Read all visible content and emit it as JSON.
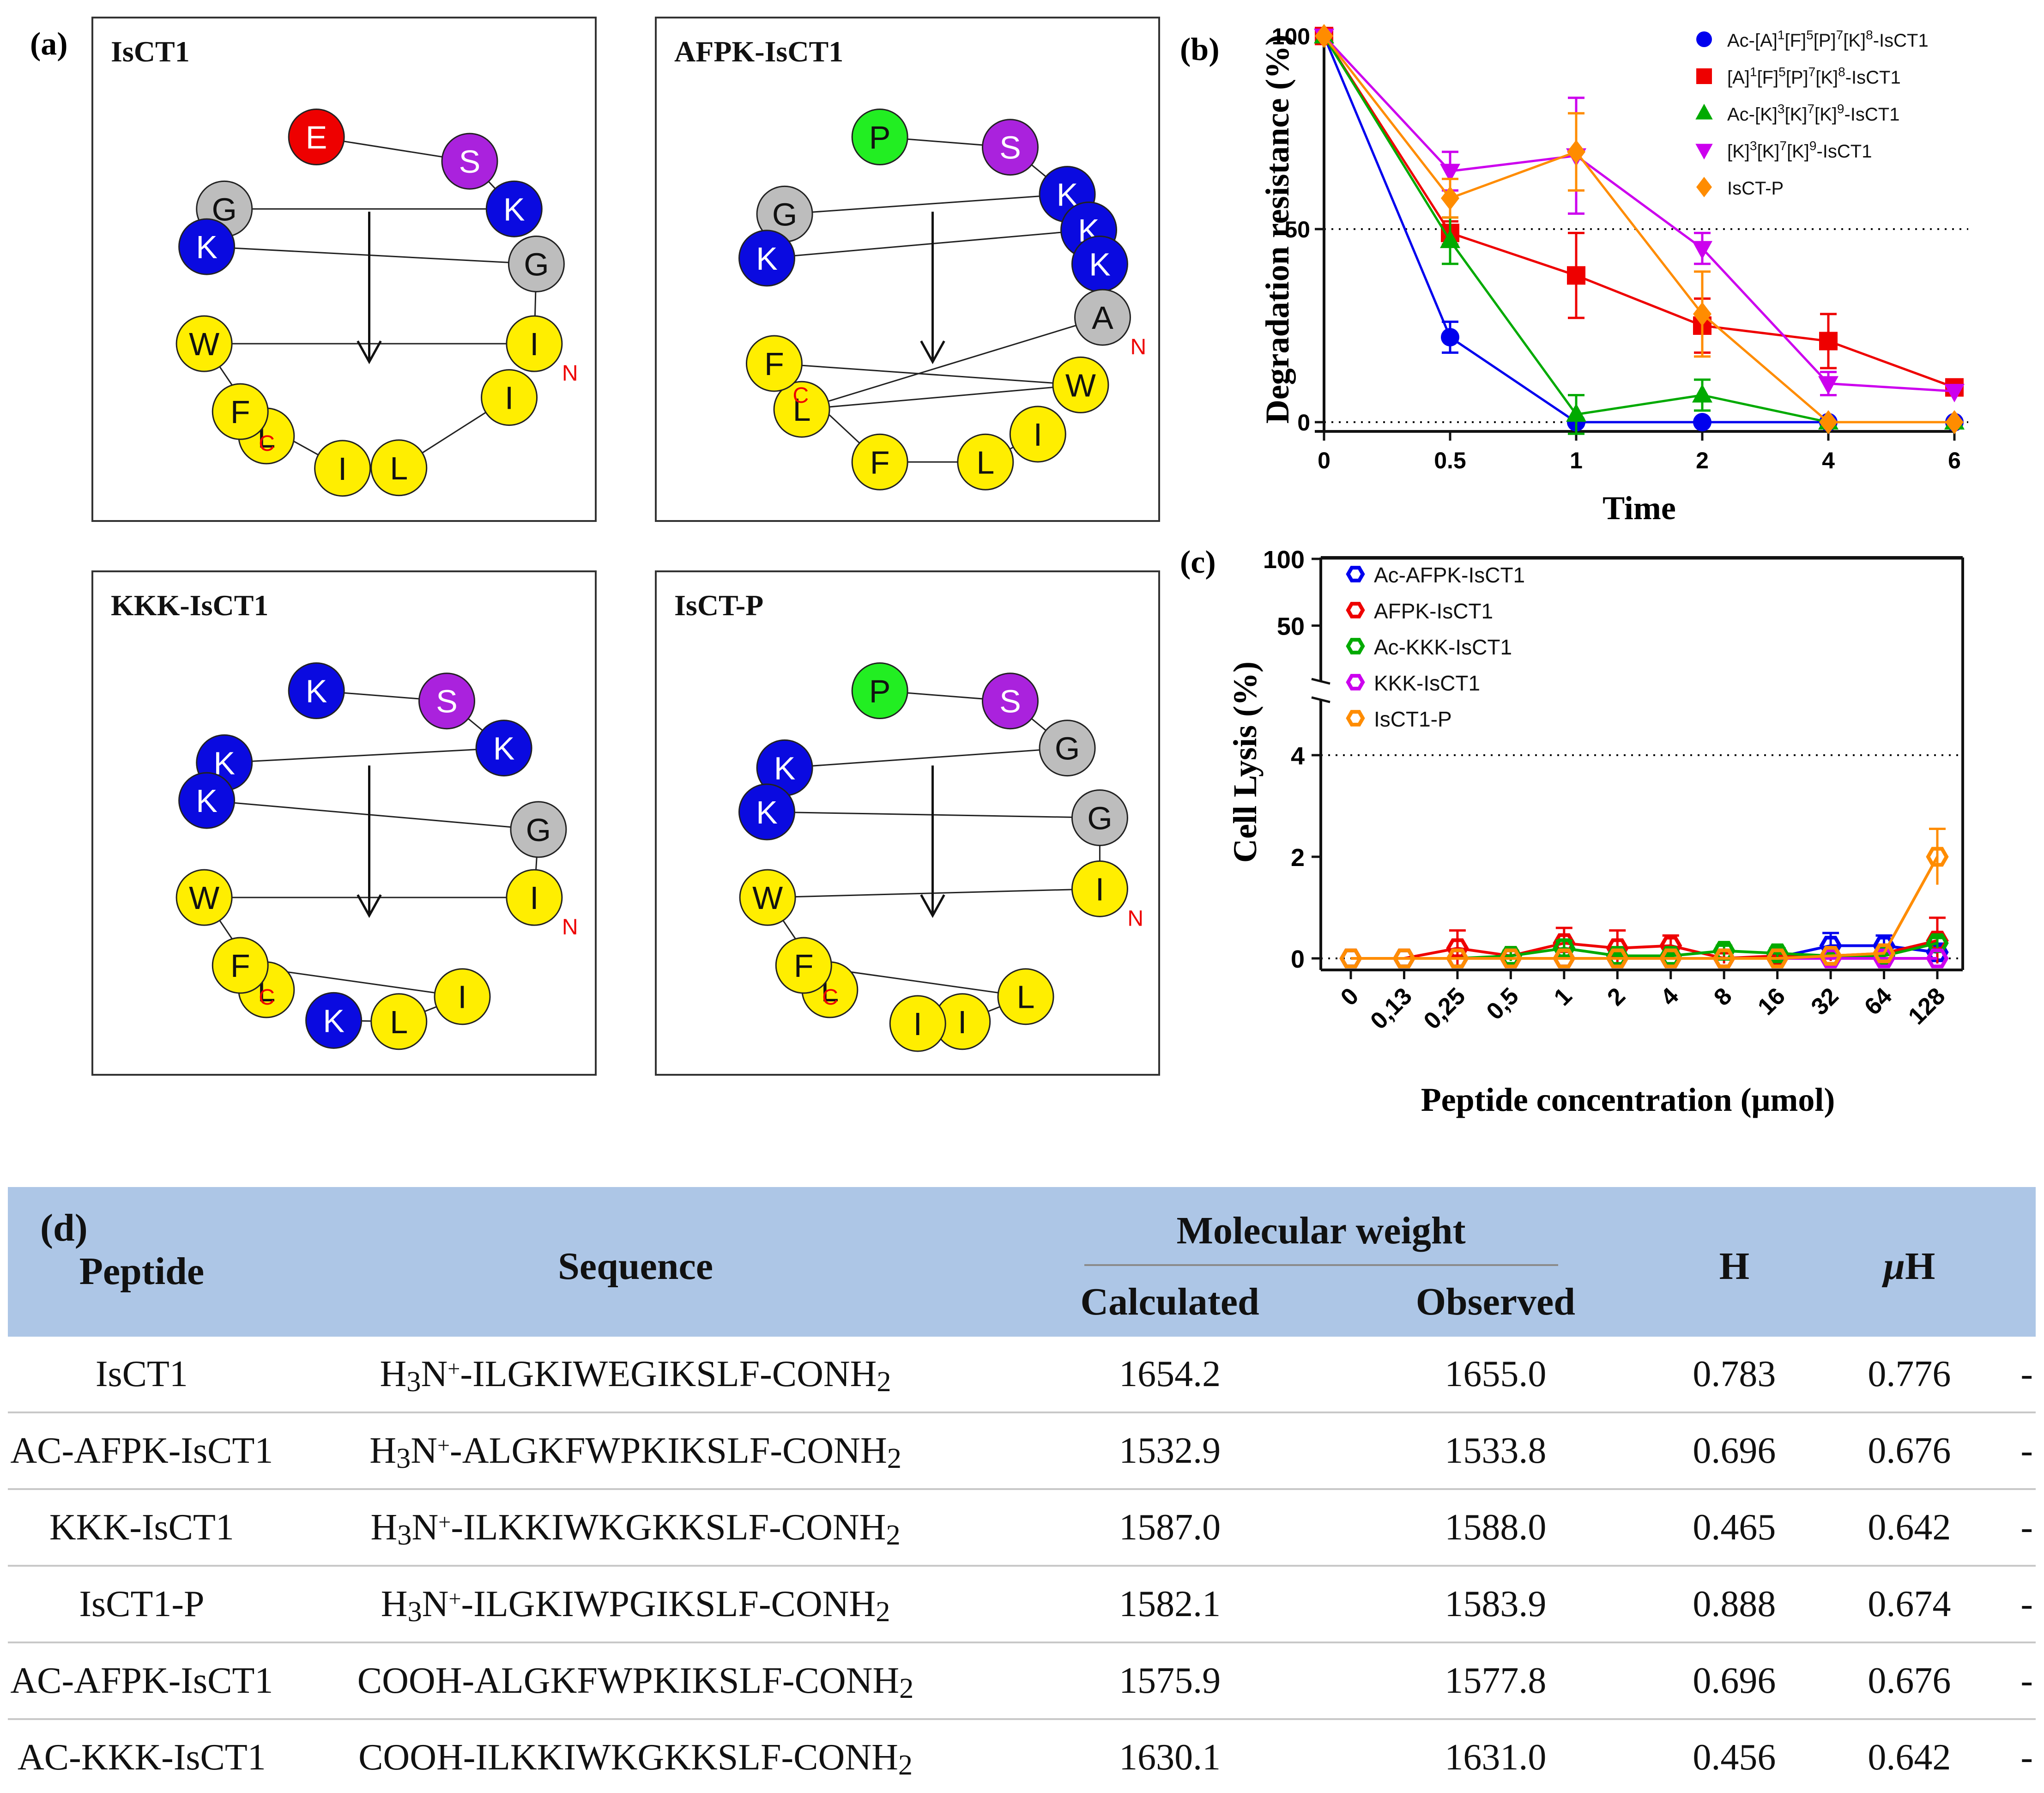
{
  "panel_labels": {
    "a": "(a)",
    "b": "(b)",
    "c": "(c)",
    "d": "(d)"
  },
  "wheels": [
    {
      "title": "IsCT1",
      "residues": [
        {
          "aa": "E",
          "color": "#ee0000"
        },
        {
          "aa": "S",
          "color": "#aa22dd"
        },
        {
          "aa": "K",
          "color": "#0a0ae0"
        },
        {
          "aa": "G",
          "color": "#bdbdbd"
        },
        {
          "aa": "K",
          "color": "#0a0ae0"
        },
        {
          "aa": "G",
          "color": "#bdbdbd"
        },
        {
          "aa": "I",
          "color": "#ffee00"
        },
        {
          "aa": "W",
          "color": "#ffee00"
        },
        {
          "aa": "L",
          "color": "#ffee00"
        },
        {
          "aa": "F",
          "color": "#ffee00"
        },
        {
          "aa": "I",
          "color": "#ffee00"
        },
        {
          "aa": "L",
          "color": "#ffee00"
        },
        {
          "aa": "I",
          "color": "#ffee00"
        }
      ],
      "n": "N",
      "c": "C"
    },
    {
      "title": "AFPK-IsCT1",
      "residues": [
        {
          "aa": "P",
          "color": "#22ee22"
        },
        {
          "aa": "S",
          "color": "#aa22dd"
        },
        {
          "aa": "K",
          "color": "#0a0ae0"
        },
        {
          "aa": "G",
          "color": "#bdbdbd"
        },
        {
          "aa": "K",
          "color": "#0a0ae0"
        },
        {
          "aa": "K",
          "color": "#0a0ae0"
        },
        {
          "aa": "K",
          "color": "#0a0ae0"
        },
        {
          "aa": "A",
          "color": "#bdbdbd"
        },
        {
          "aa": "L",
          "color": "#ffee00"
        },
        {
          "aa": "W",
          "color": "#ffee00"
        },
        {
          "aa": "F",
          "color": "#ffee00"
        },
        {
          "aa": "F",
          "color": "#ffee00"
        },
        {
          "aa": "L",
          "color": "#ffee00"
        },
        {
          "aa": "I",
          "color": "#ffee00"
        }
      ],
      "n": "N",
      "c": "C"
    },
    {
      "title": "KKK-IsCT1",
      "residues": [
        {
          "aa": "K",
          "color": "#0a0ae0"
        },
        {
          "aa": "S",
          "color": "#aa22dd"
        },
        {
          "aa": "K",
          "color": "#0a0ae0"
        },
        {
          "aa": "K",
          "color": "#0a0ae0"
        },
        {
          "aa": "K",
          "color": "#0a0ae0"
        },
        {
          "aa": "G",
          "color": "#bdbdbd"
        },
        {
          "aa": "I",
          "color": "#ffee00"
        },
        {
          "aa": "W",
          "color": "#ffee00"
        },
        {
          "aa": "L",
          "color": "#ffee00"
        },
        {
          "aa": "F",
          "color": "#ffee00"
        },
        {
          "aa": "I",
          "color": "#ffee00"
        },
        {
          "aa": "L",
          "color": "#ffee00"
        },
        {
          "aa": "K",
          "color": "#0a0ae0"
        }
      ],
      "n": "N",
      "c": "C"
    },
    {
      "title": "IsCT-P",
      "residues": [
        {
          "aa": "P",
          "color": "#22ee22"
        },
        {
          "aa": "S",
          "color": "#aa22dd"
        },
        {
          "aa": "G",
          "color": "#bdbdbd"
        },
        {
          "aa": "K",
          "color": "#0a0ae0"
        },
        {
          "aa": "K",
          "color": "#0a0ae0"
        },
        {
          "aa": "G",
          "color": "#bdbdbd"
        },
        {
          "aa": "I",
          "color": "#ffee00"
        },
        {
          "aa": "W",
          "color": "#ffee00"
        },
        {
          "aa": "L",
          "color": "#ffee00"
        },
        {
          "aa": "F",
          "color": "#ffee00"
        },
        {
          "aa": "L",
          "color": "#ffee00"
        },
        {
          "aa": "I",
          "color": "#ffee00"
        },
        {
          "aa": "I",
          "color": "#ffee00"
        }
      ],
      "n": "N",
      "c": "C"
    }
  ],
  "chart_data": [
    {
      "type": "line",
      "panel": "b",
      "title": "",
      "xlabel": "Time",
      "ylabel": "Degradation resistance (%)",
      "categories": [
        "0",
        "0.5",
        "1",
        "2",
        "4",
        "6"
      ],
      "yticks": [
        "0",
        "50",
        "100"
      ],
      "ylim": [
        0,
        100
      ],
      "reference_lines": [
        50,
        0
      ],
      "series": [
        {
          "name": "Ac-[A]1[F]5[P]7[K]8-IsCT1",
          "legend": [
            "Ac-[A]",
            "1",
            "[F]",
            "5",
            "[P]",
            "7",
            "[K]",
            "8",
            "-IsCT1"
          ],
          "color": "#0000ee",
          "marker": "circle",
          "values": [
            100,
            22,
            0,
            0,
            0,
            0
          ],
          "errors": [
            0,
            4,
            0,
            0,
            0,
            0
          ]
        },
        {
          "name": "[A]1[F]5[P]7[K]8-IsCT1",
          "legend": [
            "[A]",
            "1",
            "[F]",
            "5",
            "[P]",
            "7",
            "[K]",
            "8",
            "-IsCT1"
          ],
          "color": "#ee0000",
          "marker": "square",
          "values": [
            100,
            49,
            38,
            25,
            21,
            9
          ],
          "errors": [
            0,
            3,
            11,
            7,
            7,
            2
          ]
        },
        {
          "name": "Ac-[K]3[K]7[K]9-IsCT1",
          "legend": [
            "Ac-[K]",
            "3",
            "[K]",
            "7",
            "[K]",
            "9",
            "-IsCT1"
          ],
          "color": "#00aa00",
          "marker": "triangle",
          "values": [
            100,
            47,
            2,
            7,
            0,
            0
          ],
          "errors": [
            0,
            6,
            5,
            4,
            0,
            0
          ]
        },
        {
          "name": "[K]3[K]7[K]9-IsCT1",
          "legend": [
            "[K]",
            "3",
            "[K]",
            "7",
            "[K]",
            "9",
            "-IsCT1"
          ],
          "color": "#cc00ee",
          "marker": "triangle-down",
          "values": [
            100,
            65,
            69,
            45,
            10,
            8
          ],
          "errors": [
            0,
            5,
            15,
            4,
            3,
            0
          ]
        },
        {
          "name": "IsCT-P",
          "legend": [
            "IsCT-P"
          ],
          "color": "#ff8c00",
          "marker": "diamond",
          "values": [
            100,
            58,
            70,
            28,
            0,
            0
          ],
          "errors": [
            0,
            5,
            10,
            11,
            0,
            0
          ]
        }
      ]
    },
    {
      "type": "line",
      "panel": "c",
      "title": "",
      "xlabel": "Peptide concentration (μmol)",
      "ylabel": "Cell Lysis (%)",
      "categories": [
        "0",
        "0,13",
        "0,25",
        "0,5",
        "1",
        "2",
        "4",
        "8",
        "16",
        "32",
        "64",
        "128"
      ],
      "yticks_lower": [
        "0",
        "2",
        "4"
      ],
      "yticks_upper": [
        "50",
        "100"
      ],
      "ylim_lower": [
        0,
        5
      ],
      "ylim_upper": [
        10,
        100
      ],
      "reference_lines": [
        4,
        0
      ],
      "series": [
        {
          "name": "Ac-AFPK-IsCT1",
          "color": "#0000ee",
          "marker": "hexagon-open",
          "values": [
            0,
            0,
            0,
            0,
            0,
            0,
            0,
            0,
            0.02,
            0.25,
            0.25,
            0.12
          ],
          "errors": [
            0,
            0,
            0,
            0,
            0,
            0,
            0,
            0,
            0.05,
            0.25,
            0.2,
            0.1
          ]
        },
        {
          "name": "AFPK-IsCT1",
          "color": "#ee0000",
          "marker": "hexagon-open",
          "values": [
            0,
            0,
            0.2,
            0.05,
            0.3,
            0.2,
            0.25,
            0,
            0.05,
            0.05,
            0.1,
            0.35
          ],
          "errors": [
            0,
            0,
            0.35,
            0.1,
            0.3,
            0.35,
            0.2,
            0.1,
            0.1,
            0.1,
            0.1,
            0.45
          ]
        },
        {
          "name": "Ac-KKK-IsCT1",
          "color": "#00aa00",
          "marker": "hexagon-open",
          "values": [
            0,
            0,
            0,
            0.05,
            0.2,
            0.05,
            0.05,
            0.15,
            0.1,
            0.05,
            0.05,
            0.3
          ],
          "errors": [
            0,
            0,
            0,
            0.1,
            0.15,
            0.05,
            0.05,
            0.1,
            0.1,
            0.05,
            0.05,
            0.1
          ]
        },
        {
          "name": "KKK-IsCT1",
          "color": "#cc00ee",
          "marker": "hexagon-open",
          "values": [
            0,
            0,
            0,
            0,
            0,
            0,
            0,
            0,
            0,
            0,
            0,
            0
          ],
          "errors": [
            0,
            0,
            0,
            0,
            0,
            0,
            0,
            0,
            0,
            0,
            0,
            0
          ]
        },
        {
          "name": "IsCT1-P",
          "color": "#ff8c00",
          "marker": "hexagon-open",
          "values": [
            0,
            0,
            0,
            0,
            0,
            0,
            0,
            0,
            0,
            0.05,
            0.1,
            2.0
          ],
          "errors": [
            0,
            0,
            0,
            0,
            0,
            0,
            0,
            0,
            0,
            0,
            0,
            0.55
          ]
        }
      ]
    }
  ],
  "table": {
    "header": {
      "peptide": "Peptide",
      "sequence": "Sequence",
      "mw": "Molecular weight",
      "calc": "Calculated",
      "obs": "Observed",
      "h": "H",
      "uh_mu": "μ",
      "uh_h": "H"
    },
    "rows": [
      {
        "peptide": "IsCT1",
        "pre": "H",
        "pre_sub": "3",
        "ion": "N",
        "ion_sup": "+",
        "seq": "-ILGKIWEGIKSLF-CONH",
        "seq_sub": "2",
        "calc": "1654.2",
        "obs": "1655.0",
        "h": "0.783",
        "uh": "0.776",
        "trail": "-"
      },
      {
        "peptide": "AC-AFPK-IsCT1",
        "pre": "H",
        "pre_sub": "3",
        "ion": "N",
        "ion_sup": "+",
        "seq": "-ALGKFWPKIKSLF-CONH",
        "seq_sub": "2",
        "calc": "1532.9",
        "obs": "1533.8",
        "h": "0.696",
        "uh": "0.676",
        "trail": "-"
      },
      {
        "peptide": "KKK-IsCT1",
        "pre": "H",
        "pre_sub": "3",
        "ion": "N",
        "ion_sup": "+",
        "seq": "-ILKKIWKGKKSLF-CONH",
        "seq_sub": "2",
        "calc": "1587.0",
        "obs": "1588.0",
        "h": "0.465",
        "uh": "0.642",
        "trail": "-"
      },
      {
        "peptide": "IsCT1-P",
        "pre": "H",
        "pre_sub": "3",
        "ion": "N",
        "ion_sup": "+",
        "seq": "-ILGKIWPGIKSLF-CONH",
        "seq_sub": "2",
        "calc": "1582.1",
        "obs": "1583.9",
        "h": "0.888",
        "uh": "0.674",
        "trail": "-"
      },
      {
        "peptide": "AC-AFPK-IsCT1",
        "pre": "COOH",
        "pre_sub": "",
        "ion": "",
        "ion_sup": "",
        "seq": "-ALGKFWPKIKSLF-CONH",
        "seq_sub": "2",
        "calc": "1575.9",
        "obs": "1577.8",
        "h": "0.696",
        "uh": "0.676",
        "trail": "-"
      },
      {
        "peptide": "AC-KKK-IsCT1",
        "pre": "COOH",
        "pre_sub": "",
        "ion": "",
        "ion_sup": "",
        "seq": "-ILKKIWKGKKSLF-CONH",
        "seq_sub": "2",
        "calc": "1630.1",
        "obs": "1631.0",
        "h": "0.456",
        "uh": "0.642",
        "trail": "-"
      }
    ]
  }
}
